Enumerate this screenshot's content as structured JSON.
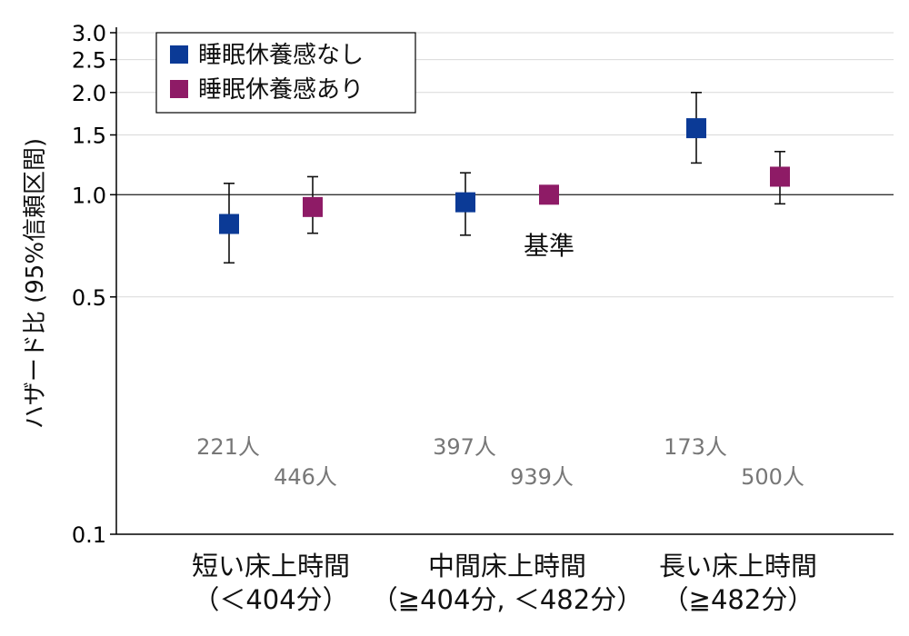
{
  "chart_data": {
    "type": "scatter",
    "ylabel": "ハザード比 (95%信頼区間)",
    "yscale": "log",
    "ylim": [
      0.1,
      3.0
    ],
    "yticks": [
      0.1,
      0.5,
      1.0,
      1.5,
      2.0,
      2.5,
      3.0
    ],
    "ytick_labels": [
      "0.1",
      "0.5",
      "1.0",
      "1.5",
      "2.0",
      "2.5",
      "3.0"
    ],
    "reference_line": 1.0,
    "grid": true,
    "legend_position": "top-left",
    "categories": [
      {
        "line1": "短い床上時間",
        "line2": "（＜404分）"
      },
      {
        "line1": "中間床上時間",
        "line2": "（≧404分, ＜482分）"
      },
      {
        "line1": "長い床上時間",
        "line2": "（≧482分）"
      }
    ],
    "series": [
      {
        "name": "睡眠休養感なし",
        "color": "#0b3a96",
        "values": [
          0.82,
          0.95,
          1.57
        ],
        "ci_low": [
          0.63,
          0.76,
          1.24
        ],
        "ci_high": [
          1.08,
          1.16,
          2.0
        ],
        "counts": [
          "221人",
          "397人",
          "173人"
        ]
      },
      {
        "name": "睡眠休養感あり",
        "color": "#8e1b66",
        "values": [
          0.92,
          1.0,
          1.13
        ],
        "ci_low": [
          0.77,
          null,
          0.94
        ],
        "ci_high": [
          1.13,
          null,
          1.34
        ],
        "counts": [
          "446人",
          "939人",
          "500人"
        ]
      }
    ],
    "annotation": "基準"
  }
}
